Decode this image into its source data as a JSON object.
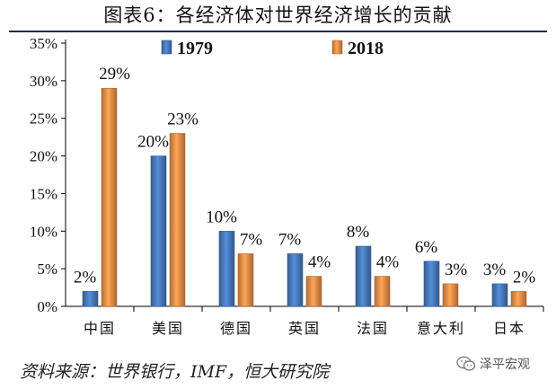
{
  "title": "图表6：各经济体对世界经济增长的贡献",
  "source": "资料来源：世界银行，IMF，恒大研究院",
  "watermark": "泽平宏观",
  "watermark_icon": "wechat-icon",
  "colors": {
    "series_1979": "#4a7cbf",
    "series_2018": "#f0904a",
    "axis": "#000000"
  },
  "chart_data": {
    "type": "bar",
    "title": "图表6：各经济体对世界经济增长的贡献",
    "xlabel": "",
    "ylabel": "",
    "categories": [
      "中国",
      "美国",
      "德国",
      "英国",
      "法国",
      "意大利",
      "日本"
    ],
    "series": [
      {
        "name": "1979",
        "values": [
          2,
          20,
          10,
          7,
          8,
          6,
          3
        ],
        "labels": [
          "2%",
          "20%",
          "10%",
          "7%",
          "8%",
          "6%",
          "3%"
        ]
      },
      {
        "name": "2018",
        "values": [
          29,
          23,
          7,
          4,
          4,
          3,
          2
        ],
        "labels": [
          "29%",
          "23%",
          "7%",
          "4%",
          "4%",
          "3%",
          "2%"
        ]
      }
    ],
    "ylim": [
      0,
      35
    ],
    "yticks": [
      0,
      5,
      10,
      15,
      20,
      25,
      30,
      35
    ],
    "ytick_labels": [
      "0%",
      "5%",
      "10%",
      "15%",
      "20%",
      "25%",
      "30%",
      "35%"
    ],
    "grid": false,
    "legend": "top-center"
  }
}
